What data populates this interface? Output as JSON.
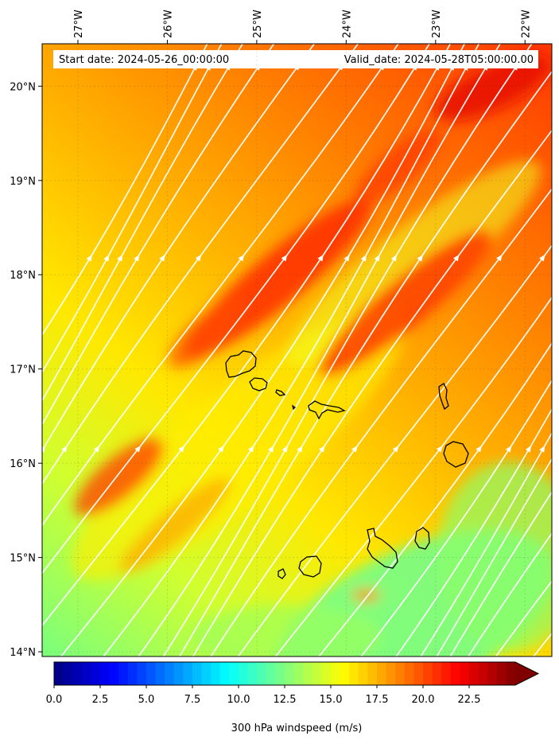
{
  "header": {
    "start_date": "Start date: 2024-05-26_00:00:00",
    "valid_date": "Valid_date: 2024-05-28T05:00:00.00"
  },
  "map": {
    "lon_range": [
      -27.4,
      -21.7
    ],
    "lat_range": [
      13.95,
      20.45
    ],
    "lon_ticks": [
      {
        "value": -27,
        "label": "27°W"
      },
      {
        "value": -26,
        "label": "26°W"
      },
      {
        "value": -25,
        "label": "25°W"
      },
      {
        "value": -24,
        "label": "24°W"
      },
      {
        "value": -23,
        "label": "23°W"
      },
      {
        "value": -22,
        "label": "22°W"
      }
    ],
    "lat_ticks": [
      {
        "value": 20,
        "label": "20°N"
      },
      {
        "value": 19,
        "label": "19°N"
      },
      {
        "value": 18,
        "label": "18°N"
      },
      {
        "value": 17,
        "label": "17°N"
      },
      {
        "value": 16,
        "label": "16°N"
      },
      {
        "value": 15,
        "label": "15°N"
      },
      {
        "value": 14,
        "label": "14°N"
      }
    ],
    "streamline_color": "#ffffff",
    "coastline_color": "#000000"
  },
  "colorbar": {
    "label": "300 hPa windspeed (m/s)",
    "min": 0,
    "max": 25,
    "extend": "max",
    "ticks": [
      {
        "value": 0,
        "label": "0.0"
      },
      {
        "value": 2.5,
        "label": "2.5"
      },
      {
        "value": 5,
        "label": "5.0"
      },
      {
        "value": 7.5,
        "label": "7.5"
      },
      {
        "value": 10,
        "label": "10.0"
      },
      {
        "value": 12.5,
        "label": "12.5"
      },
      {
        "value": 15,
        "label": "15.0"
      },
      {
        "value": 17.5,
        "label": "17.5"
      },
      {
        "value": 20,
        "label": "20.0"
      },
      {
        "value": 22.5,
        "label": "22.5"
      }
    ],
    "colormap": "jet"
  }
}
